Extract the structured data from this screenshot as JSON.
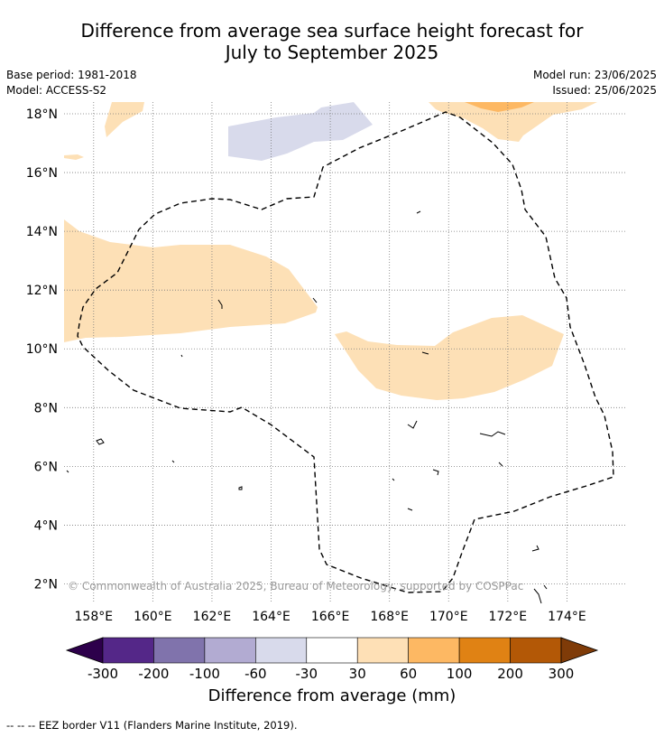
{
  "title": {
    "line1": "Difference from average sea surface height forecast for",
    "line2": "July to September 2025"
  },
  "meta": {
    "base_period": "Base period: 1981-2018",
    "model": "Model: ACCESS-S2",
    "model_run": "Model run: 23/06/2025",
    "issued": "Issued: 25/06/2025"
  },
  "map": {
    "lon_range": [
      157,
      176
    ],
    "lat_range": [
      1.4,
      18.4
    ],
    "lon_ticks": [
      {
        "value": 158,
        "label": "158°E"
      },
      {
        "value": 160,
        "label": "160°E"
      },
      {
        "value": 162,
        "label": "162°E"
      },
      {
        "value": 164,
        "label": "164°E"
      },
      {
        "value": 166,
        "label": "166°E"
      },
      {
        "value": 168,
        "label": "168°E"
      },
      {
        "value": 170,
        "label": "170°E"
      },
      {
        "value": 172,
        "label": "172°E"
      },
      {
        "value": 174,
        "label": "174°E"
      }
    ],
    "lat_ticks": [
      {
        "value": 2,
        "label": "2°N"
      },
      {
        "value": 4,
        "label": "4°N"
      },
      {
        "value": 6,
        "label": "6°N"
      },
      {
        "value": 8,
        "label": "8°N"
      },
      {
        "value": 10,
        "label": "10°N"
      },
      {
        "value": 12,
        "label": "12°N"
      },
      {
        "value": 14,
        "label": "14°N"
      },
      {
        "value": 16,
        "label": "16°N"
      },
      {
        "value": 18,
        "label": "18°N"
      }
    ],
    "gridlines": true,
    "copyright": "© Commonwealth of Australia 2025, Bureau of Meteorology, supported by COSPPac"
  },
  "colorbar": {
    "title": "Difference from average (mm)",
    "tick_labels": [
      "-300",
      "-200",
      "-100",
      "-60",
      "-30",
      "30",
      "60",
      "100",
      "200",
      "300"
    ],
    "colors": [
      "#2d004b",
      "#542788",
      "#8073ac",
      "#b2abd2",
      "#d8daeb",
      "#ffffff",
      "#fee0b6",
      "#fdb863",
      "#e08214",
      "#b35806",
      "#7f3b08"
    ]
  },
  "footnote": "--  --  -- EEZ border V11 (Flanders Marine Institute, 2019)."
}
